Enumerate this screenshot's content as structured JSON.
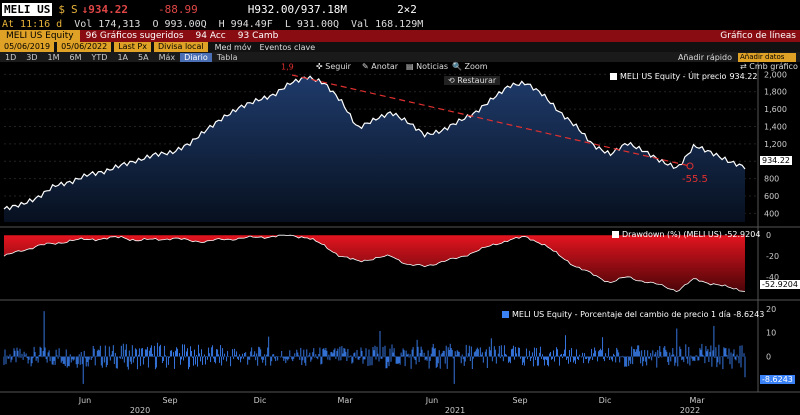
{
  "ticker": {
    "symbol": "MELI US",
    "currency_mark": "$",
    "price_flag": "S",
    "price": "↓934.22",
    "change": "-88.99",
    "bid_ask": "H932.00/937.18M",
    "size": "2×2"
  },
  "stats": {
    "at": "At 11:16 d",
    "vol": "Vol 174,313",
    "open": "O 993.00Q",
    "high": "H 994.49F",
    "low": "L 931.00Q",
    "val": "Val 168.129M"
  },
  "toolbar": {
    "security": "MELI US Equity",
    "suggested": "96 Gráficos sugeridos",
    "actions": "94 Acc",
    "change": "93 Camb",
    "title": "Gráfico de líneas"
  },
  "date_bar": {
    "start": "05/06/2019",
    "end": "05/06/2022",
    "field": "Last Px",
    "currency": "Divisa local",
    "avg": "Med móv",
    "events": "Eventos clave"
  },
  "periods": {
    "items": [
      "1D",
      "3D",
      "1M",
      "6M",
      "YTD",
      "1A",
      "5A",
      "Máx"
    ],
    "freq": "Diario",
    "table": "Tabla",
    "add": "Añadir rápido",
    "add_box": "Añadir datos"
  },
  "overlay": {
    "follow": "Seguir",
    "annotate": "Anotar",
    "news": "Noticias",
    "zoom": "Zoom",
    "restore": "Restaurar",
    "cmb": "Cmb gráfico",
    "annotation": "-55.5",
    "peak_label": "1,9"
  },
  "legends": {
    "price": "MELI US Equity - Últ precio",
    "price_last": "934.22",
    "dd": "Drawdown (%) (MELI US) -52.9204",
    "ret": "MELI US Equity - Porcentaje del cambio de precio 1 día -8.6243"
  },
  "last_labels": {
    "price": "934.22",
    "dd": "-52.9204",
    "ret": "-8.6243"
  },
  "colors": {
    "price_line": "#ffffff",
    "price_fill_top": "#1f3b6b",
    "dd_fill": "#e3141f",
    "ret_bar": "#3b82f6",
    "trend": "#e03030"
  },
  "chart_data": [
    {
      "type": "area",
      "series": [
        {
          "name": "MELI US Equity - Últ precio",
          "values": [
            450,
            500,
            580,
            720,
            760,
            850,
            880,
            960,
            1010,
            1080,
            1100,
            1200,
            1360,
            1500,
            1620,
            1700,
            1760,
            1900,
            1970,
            1900,
            1700,
            1380,
            1480,
            1560,
            1450,
            1300,
            1350,
            1460,
            1560,
            1720,
            1870,
            1900,
            1770,
            1560,
            1400,
            1180,
            1080,
            1210,
            1120,
            1000,
            920,
            1180,
            1100,
            1000,
            934
          ]
        }
      ],
      "x_tick_labels": [
        "Jun",
        "Sep",
        "Dic",
        "Mar",
        "Jun",
        "Sep",
        "Dic",
        "Mar"
      ],
      "year_labels": [
        "2020",
        "2021",
        "2022"
      ],
      "y_ticks": [
        400,
        600,
        800,
        1000,
        1200,
        1400,
        1600,
        1800,
        2000
      ],
      "ylim": [
        300,
        2050
      ]
    },
    {
      "type": "area",
      "series": [
        {
          "name": "Drawdown (%) (MELI US)",
          "values": [
            -20,
            -15,
            -10,
            -8,
            -5,
            -4,
            -3,
            -2,
            -5,
            -4,
            -3,
            -5,
            -6,
            -4,
            -3,
            -2,
            -1,
            0,
            -2,
            -10,
            -20,
            -25,
            -22,
            -20,
            -28,
            -30,
            -25,
            -22,
            -15,
            -10,
            -4,
            -2,
            -8,
            -20,
            -30,
            -38,
            -45,
            -40,
            -44,
            -48,
            -53,
            -42,
            -46,
            -50,
            -52.92
          ]
        }
      ],
      "y_ticks": [
        0,
        -20,
        -40
      ],
      "ylim": [
        -60,
        5
      ]
    },
    {
      "type": "bar",
      "series": [
        {
          "name": "MELI US Equity - Porcentaje del cambio de precio 1 día"
        }
      ],
      "last_value": -8.6243,
      "y_ticks": [
        20,
        10,
        0,
        -10
      ],
      "ylim": [
        -14,
        22
      ]
    }
  ]
}
